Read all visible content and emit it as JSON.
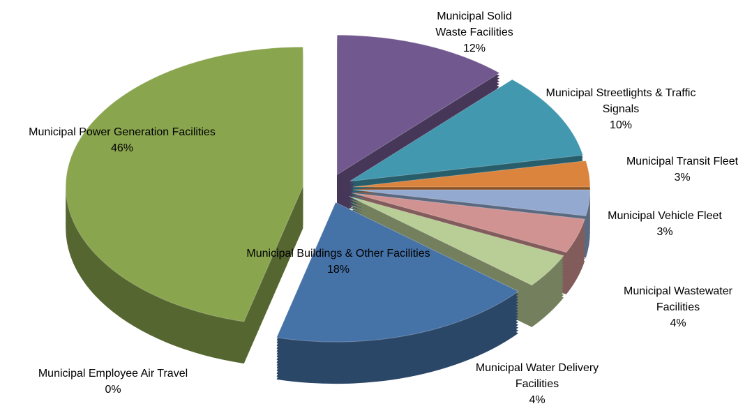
{
  "chart_data": {
    "type": "pie",
    "categories": [
      "Municipal Solid Waste Facilities",
      "Municipal Streetlights & Traffic Signals",
      "Municipal Transit Fleet",
      "Municipal Vehicle Fleet",
      "Municipal Wastewater Facilities",
      "Municipal Water Delivery Facilities",
      "Municipal Buildings & Other Facilities",
      "Municipal Employee Air Travel",
      "Municipal Power Generation Facilities"
    ],
    "values": [
      12,
      10,
      3,
      3,
      4,
      4,
      18,
      0,
      46
    ],
    "value_labels": [
      "12%",
      "10%",
      "3%",
      "3%",
      "4%",
      "4%",
      "18%",
      "0%",
      "46%"
    ],
    "colors": [
      "#71588f",
      "#4198af",
      "#db843d",
      "#93a9cf",
      "#d19392",
      "#b9cd96",
      "#4572a7",
      "#aa4643",
      "#89a54e"
    ]
  }
}
